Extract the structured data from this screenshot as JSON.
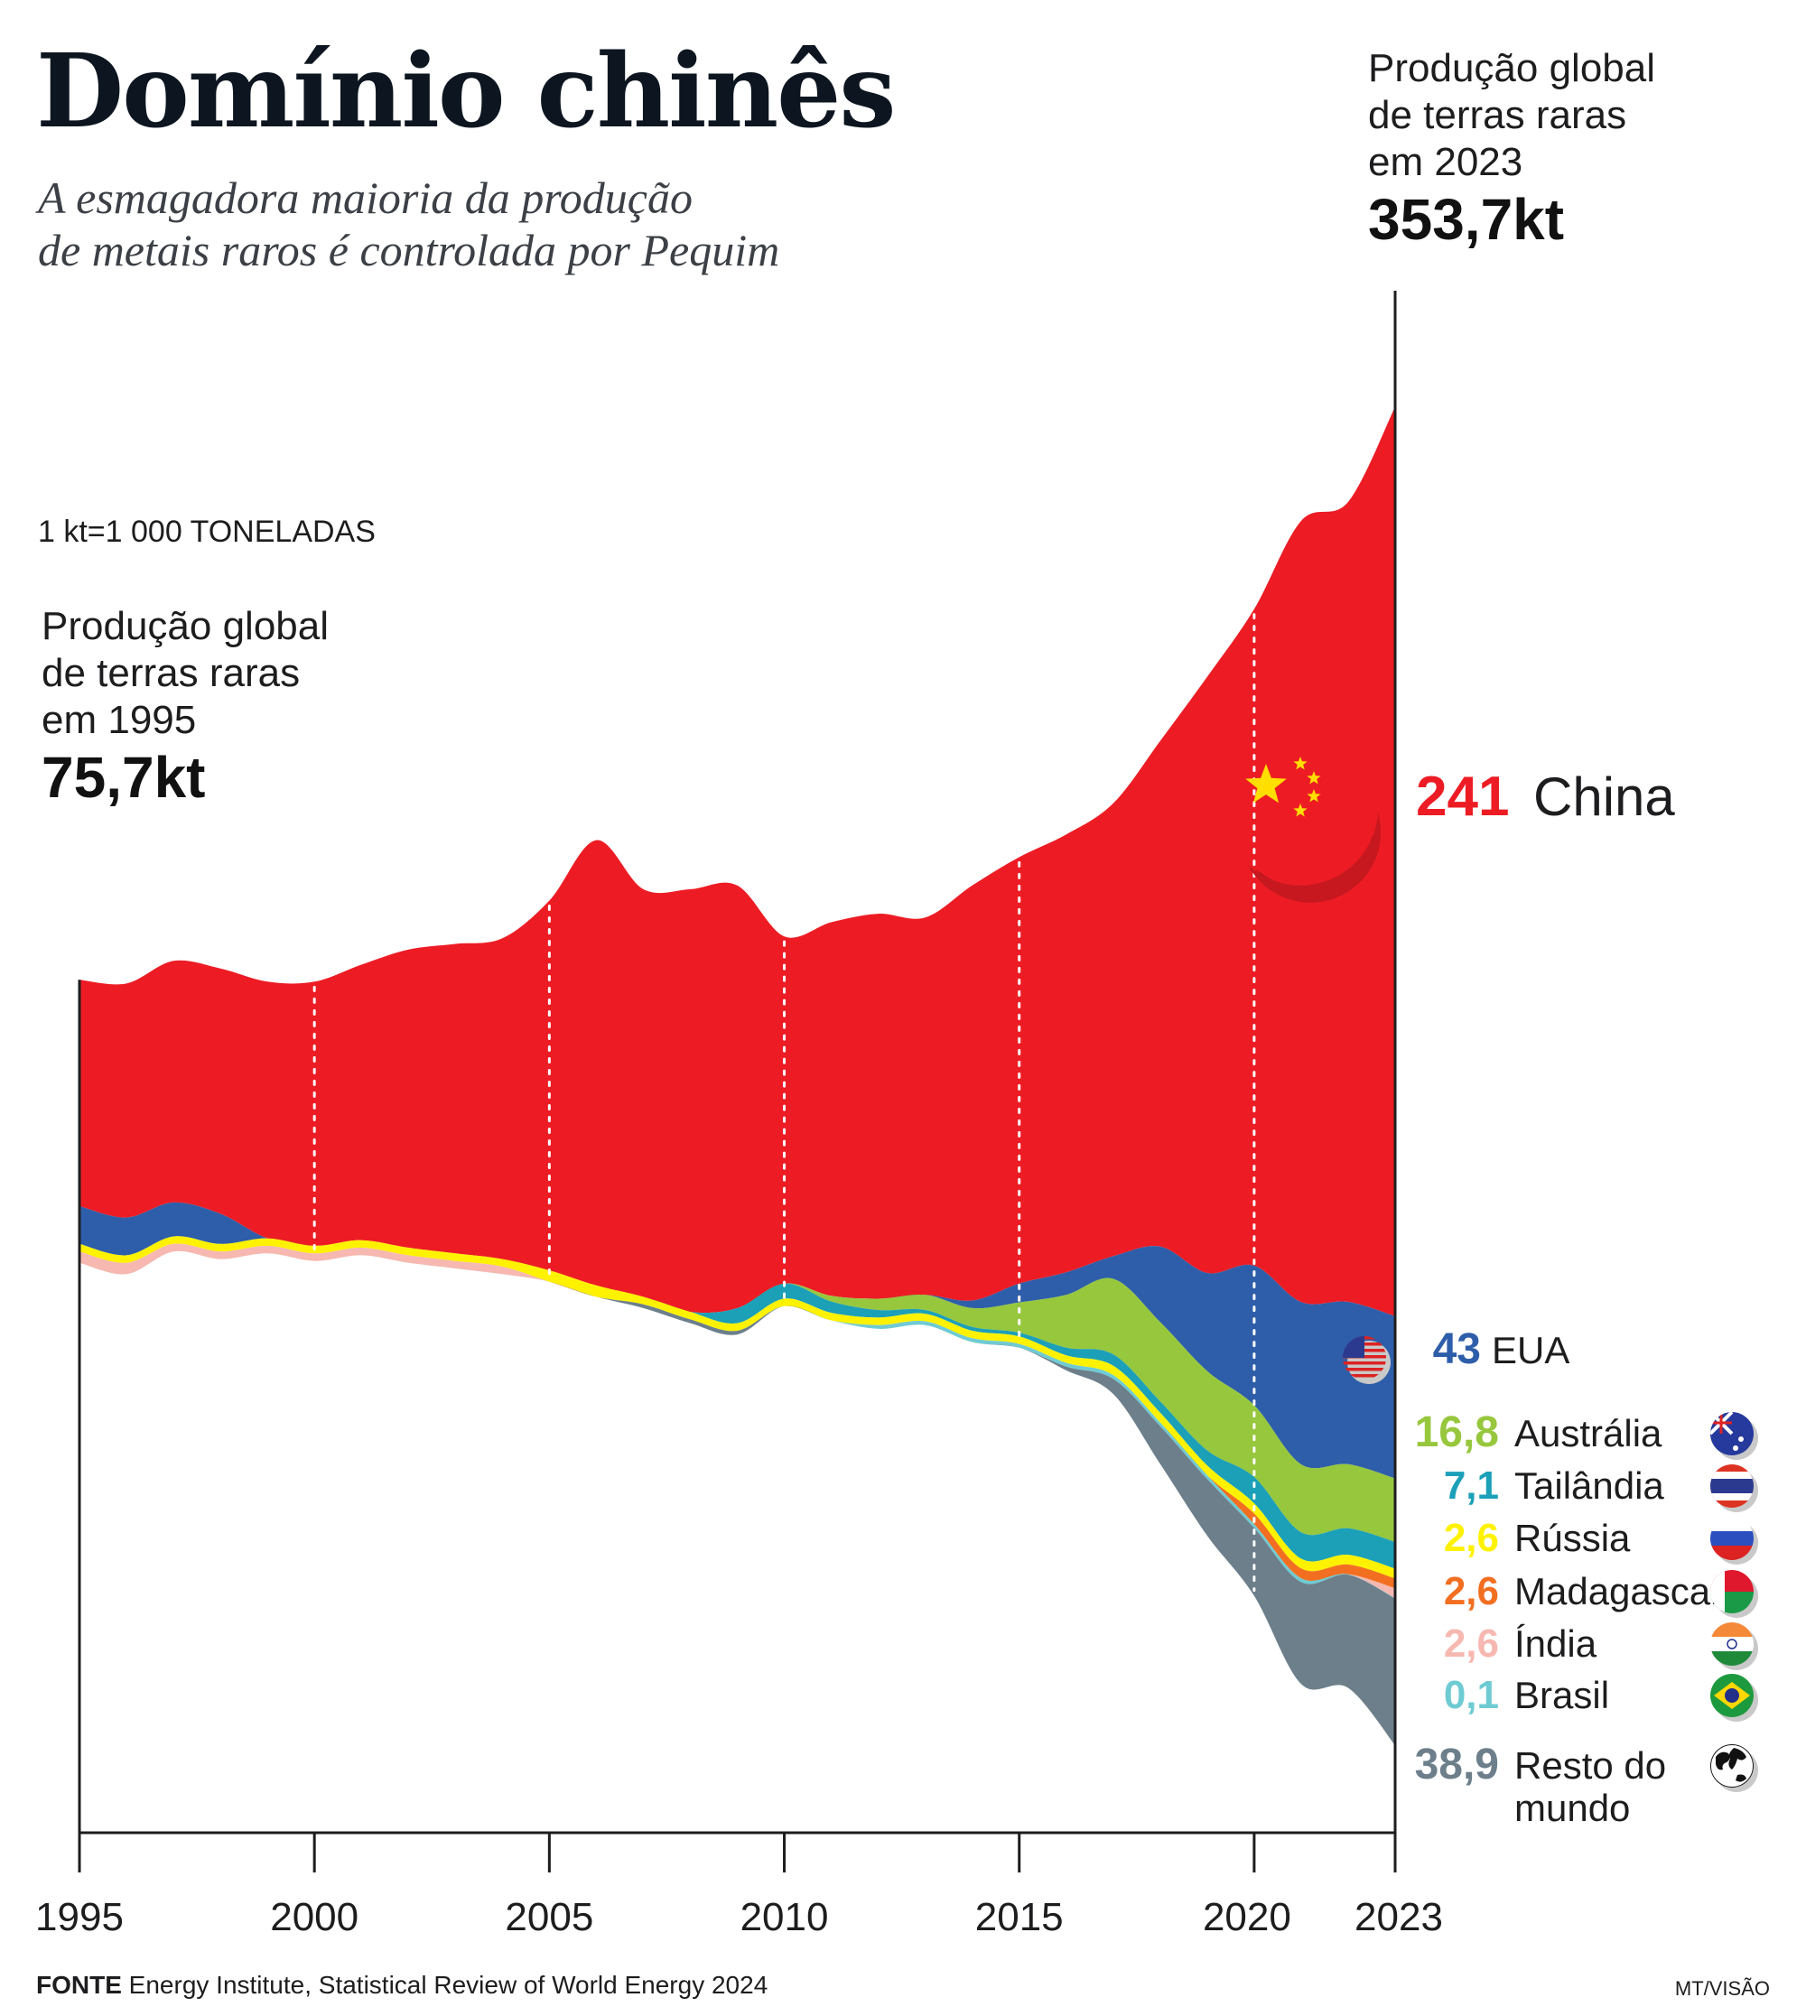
{
  "header": {
    "title": "Domínio chinês",
    "subtitle_line1": "A esmagadora maioria da produção",
    "subtitle_line2": "de metais raros é controlada por Pequim"
  },
  "unit_note": "1 kt=1 000 TONELADAS",
  "start_annotation": {
    "line1": "Produção global",
    "line2": "de terras raras",
    "line3": "em 1995",
    "value": "75,7kt"
  },
  "end_annotation": {
    "line1": "Produção global",
    "line2": "de terras raras",
    "line3": "em 2023",
    "value": "353,7kt"
  },
  "footer": {
    "source_label": "FONTE",
    "source_text": "Energy Institute, Statistical Review of World Energy 2024",
    "credit": "MT/VISÃO"
  },
  "colors": {
    "China": "#ed1c24",
    "EUA": "#2e5ea9",
    "Austrália": "#97c73d",
    "Tailândia": "#1ba0b8",
    "Rússia": "#fff200",
    "Madagascar": "#f26f21",
    "Índia": "#f6b8b0",
    "Brasil": "#6fcbd3",
    "Resto do mundo": "#6c7f8b"
  },
  "chart_data": {
    "type": "area",
    "stacking": "streamgraph",
    "unit": "kt",
    "title": "Domínio chinês",
    "x": [
      1995,
      1996,
      1997,
      1998,
      1999,
      2000,
      2001,
      2002,
      2003,
      2004,
      2005,
      2006,
      2007,
      2008,
      2009,
      2010,
      2011,
      2012,
      2013,
      2014,
      2015,
      2016,
      2017,
      2018,
      2019,
      2020,
      2021,
      2022,
      2023
    ],
    "xticks": [
      "1995",
      "2000",
      "2005",
      "2010",
      "2015",
      "2020",
      "2023"
    ],
    "series": [
      {
        "name": "China",
        "values": [
          60,
          62,
          64,
          65,
          68,
          70,
          73,
          79,
          82,
          85,
          98,
          118,
          108,
          112,
          112,
          92,
          99,
          102,
          100,
          110,
          113,
          116,
          120,
          134,
          158,
          174,
          207,
          212,
          241
        ]
      },
      {
        "name": "EUA",
        "values": [
          10,
          10,
          9,
          8,
          0,
          0,
          0,
          0,
          0,
          0,
          0,
          0,
          0,
          0,
          0,
          0,
          0,
          0,
          0,
          2,
          5,
          6,
          6,
          20,
          26,
          37,
          43,
          43,
          43
        ]
      },
      {
        "name": "Austrália",
        "values": [
          0,
          0,
          0,
          0,
          0,
          0,
          0,
          0,
          0,
          0,
          0,
          0,
          0,
          0,
          0,
          0,
          1.5,
          3,
          4,
          5,
          8,
          14,
          20,
          21,
          21,
          19,
          18,
          17,
          16.8
        ]
      },
      {
        "name": "Tailândia",
        "values": [
          0,
          0,
          0,
          0,
          0,
          0,
          0,
          0,
          0,
          0,
          0,
          0,
          0,
          0,
          4,
          4,
          3,
          2,
          1,
          1,
          1,
          2,
          3,
          3,
          4,
          7,
          7,
          7,
          7.1
        ]
      },
      {
        "name": "Rússia",
        "values": [
          2,
          2,
          2,
          2,
          2,
          2,
          2,
          2,
          2,
          2,
          3,
          3,
          2,
          2,
          2,
          2,
          2,
          2,
          2,
          2,
          2,
          2,
          2.5,
          2.6,
          2.6,
          2.7,
          2.6,
          2.6,
          2.6
        ]
      },
      {
        "name": "Madagascar",
        "values": [
          0,
          0,
          0,
          0,
          0,
          0,
          0,
          0,
          0,
          0,
          0,
          0,
          0,
          0,
          0,
          0,
          0,
          0,
          0,
          0,
          0,
          0,
          0,
          0,
          0,
          2.8,
          2.6,
          2.6,
          2.6
        ]
      },
      {
        "name": "Índia",
        "values": [
          3,
          3,
          2,
          2,
          2,
          2,
          2,
          2,
          2,
          2,
          0,
          0,
          0,
          0,
          0,
          0,
          0,
          0,
          0,
          0,
          0,
          0,
          0,
          0,
          0,
          0,
          0,
          0,
          2.6
        ]
      },
      {
        "name": "Brasil",
        "values": [
          0,
          0,
          0,
          0,
          0,
          0,
          0,
          0,
          0,
          0,
          0,
          0,
          0,
          0,
          0,
          0,
          0,
          1,
          1,
          1,
          1,
          1,
          1,
          1,
          1,
          1,
          1,
          0.1,
          0.1
        ]
      },
      {
        "name": "Resto do mundo",
        "values": [
          0,
          0,
          0,
          0,
          0,
          0,
          0,
          0,
          0,
          0,
          0,
          0,
          1,
          1,
          1,
          0,
          0,
          0,
          0,
          0,
          0,
          1,
          4,
          10,
          15,
          18,
          27,
          30,
          38.9
        ]
      }
    ],
    "baseline_offsets": [
      0,
      2,
      -4,
      -2,
      -1,
      0,
      -3,
      -4,
      -4,
      -4,
      -8,
      -14,
      -6,
      -4,
      -3,
      0,
      0,
      0,
      0,
      -2,
      -5,
      -5,
      -6,
      -5,
      -4,
      -5,
      -5,
      -7,
      -12
    ],
    "labels_2023": [
      {
        "series": "China",
        "value": "241",
        "name": "China"
      },
      {
        "series": "EUA",
        "value": "43",
        "name": "EUA"
      },
      {
        "series": "Austrália",
        "value": "16,8",
        "name": "Austrália"
      },
      {
        "series": "Tailândia",
        "value": "7,1",
        "name": "Tailândia"
      },
      {
        "series": "Rússia",
        "value": "2,6",
        "name": "Rússia"
      },
      {
        "series": "Madagascar",
        "value": "2,6",
        "name": "Madagascar"
      },
      {
        "series": "Índia",
        "value": "2,6",
        "name": "Índia"
      },
      {
        "series": "Brasil",
        "value": "0,1",
        "name": "Brasil"
      },
      {
        "series": "Resto do mundo",
        "value": "38,9",
        "name": "Resto do",
        "name2": "mundo"
      }
    ],
    "flag_icons": [
      "china-flag-icon",
      "usa-flag-icon",
      "australia-flag-icon",
      "thailand-flag-icon",
      "russia-flag-icon",
      "madagascar-flag-icon",
      "india-flag-icon",
      "brazil-flag-icon",
      "globe-icon"
    ],
    "value_label_colors": [
      "#ed1c24",
      "#2e5ea9",
      "#97c73d",
      "#1ba0b8",
      "#fff200",
      "#f26f21",
      "#f6b8b0",
      "#6fcbd3",
      "#6c7f8b"
    ],
    "grid": "dotted vertical lines at 2000, 2005, 2010, 2015, 2020"
  }
}
